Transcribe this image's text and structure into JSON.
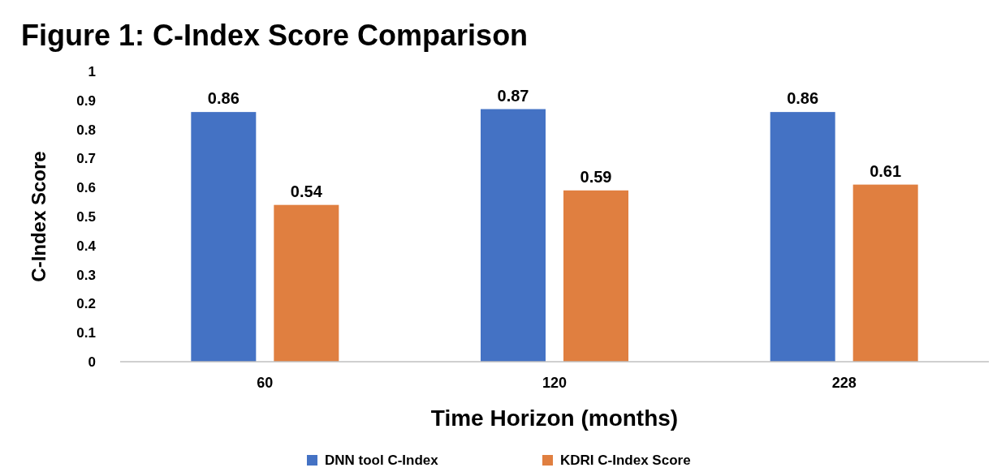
{
  "chart_data": {
    "type": "bar",
    "title": "Figure 1:  C-Index Score Comparison",
    "xlabel": "Time Horizon (months)",
    "ylabel": "C-Index Score",
    "categories": [
      "60",
      "120",
      "228"
    ],
    "series": [
      {
        "name": "DNN tool C-Index",
        "color": "#4472c4",
        "values": [
          0.86,
          0.87,
          0.86
        ]
      },
      {
        "name": "KDRI C-Index Score",
        "color": "#e07f40",
        "values": [
          0.54,
          0.59,
          0.61
        ]
      }
    ],
    "ylim": [
      0,
      1
    ],
    "yticks": [
      0,
      0.1,
      0.2,
      0.3,
      0.4,
      0.5,
      0.6,
      0.7,
      0.8,
      0.9,
      1
    ],
    "grid": false,
    "legend": "bottom",
    "data_labels": true
  }
}
